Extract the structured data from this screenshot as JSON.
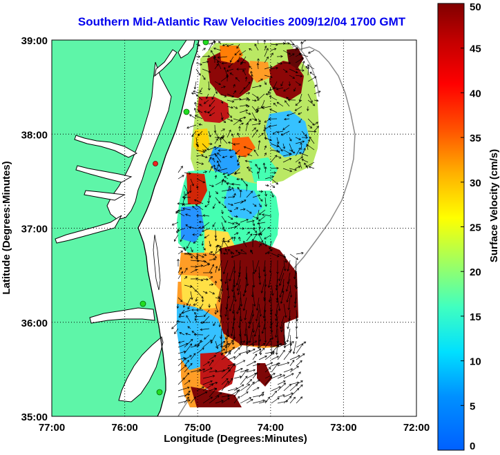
{
  "title": "Southern Mid-Atlantic Raw Velocities 2009/12/04 1700 GMT",
  "x_axis": {
    "label": "Longitude (Degrees:Minutes)",
    "ticks": [
      {
        "value": -77,
        "label": "77:00"
      },
      {
        "value": -76,
        "label": "76:00"
      },
      {
        "value": -75,
        "label": "75:00"
      },
      {
        "value": -74,
        "label": "74:00"
      },
      {
        "value": -73,
        "label": "73:00"
      },
      {
        "value": -72,
        "label": "72:00"
      }
    ],
    "range": [
      -77,
      -72
    ]
  },
  "y_axis": {
    "label": "Latitude (Degrees:Minutes)",
    "ticks": [
      {
        "value": 35,
        "label": "35:00"
      },
      {
        "value": 36,
        "label": "36:00"
      },
      {
        "value": 37,
        "label": "37:00"
      },
      {
        "value": 38,
        "label": "38:00"
      },
      {
        "value": 39,
        "label": "39:00"
      }
    ],
    "range": [
      35,
      39
    ]
  },
  "colorbar": {
    "label": "Surface Velocity (cm/s)",
    "range": [
      0,
      50
    ],
    "ticks": [
      "0",
      "5",
      "10",
      "15",
      "20",
      "25",
      "30",
      "35",
      "40",
      "45",
      "50"
    ],
    "colormap": "jet"
  },
  "grid": "dotted",
  "colors": {
    "land": "#5ef5a8",
    "coastline": "#000000",
    "bathymetry": "#8a8a8a",
    "title": "#0000ee",
    "station_green": "#22dd22",
    "station_red": "#ee2222"
  }
}
